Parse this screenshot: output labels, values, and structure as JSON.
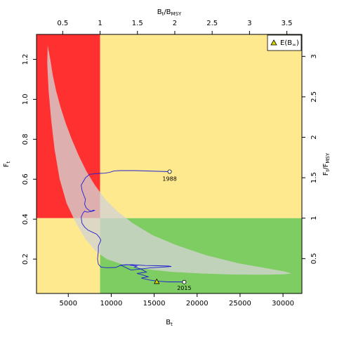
{
  "chart_data": {
    "type": "line",
    "x_axis": {
      "label": "Bt",
      "label_main": "B",
      "label_sub": "t",
      "ticks": [
        "5000",
        "10000",
        "15000",
        "20000",
        "25000",
        "30000"
      ],
      "tick_values": [
        5000,
        10000,
        15000,
        20000,
        25000,
        30000
      ],
      "range": [
        1300,
        32200
      ]
    },
    "y_axis": {
      "label": "Ft",
      "label_main": "F",
      "label_sub": "t",
      "ticks": [
        "0.2",
        "0.4",
        "0.6",
        "0.8",
        "1.0",
        "1.2"
      ],
      "tick_values": [
        0.2,
        0.4,
        0.6,
        0.8,
        1.0,
        1.2
      ],
      "range": [
        0.028,
        1.325
      ]
    },
    "top_axis": {
      "label": "Bt/BMSY",
      "label_main": "B",
      "label_sub1": "t",
      "label_mid": "/B",
      "label_sub2": "MSY",
      "ticks": [
        "0.5",
        "1",
        "1.5",
        "2",
        "2.5",
        "3",
        "3.5"
      ],
      "tick_values": [
        0.5,
        1,
        1.5,
        2,
        2.5,
        3,
        3.5
      ],
      "bmsy": 8700
    },
    "right_axis": {
      "label": "Ft/FMSY",
      "label_main": "F",
      "label_sub1": "t",
      "label_mid": "/F",
      "label_sub2": "MSY",
      "ticks": [
        "0.5",
        "1",
        "1.5",
        "2",
        "2.5",
        "3"
      ],
      "tick_values": [
        0.5,
        1,
        1.5,
        2,
        2.5,
        3
      ],
      "fmsy": 0.405
    },
    "zones": {
      "bmsy": 8700,
      "fmsy": 0.405,
      "colors": {
        "overfished_overfishing": "#ff3030",
        "caution": "#ffe98f",
        "sustainable": "#7ecd62"
      }
    },
    "uncertainty_polygon": {
      "color": "#d3d3d3",
      "points": [
        [
          2600,
          1.27
        ],
        [
          2900,
          1.2
        ],
        [
          3200,
          1.12
        ],
        [
          3600,
          1.04
        ],
        [
          4100,
          0.96
        ],
        [
          4700,
          0.88
        ],
        [
          5400,
          0.8
        ],
        [
          6200,
          0.72
        ],
        [
          7100,
          0.64
        ],
        [
          8100,
          0.57
        ],
        [
          9300,
          0.5
        ],
        [
          10700,
          0.44
        ],
        [
          12500,
          0.38
        ],
        [
          14800,
          0.32
        ],
        [
          17600,
          0.27
        ],
        [
          21000,
          0.22
        ],
        [
          24700,
          0.18
        ],
        [
          28000,
          0.155
        ],
        [
          30200,
          0.138
        ],
        [
          31000,
          0.128
        ],
        [
          30000,
          0.124
        ],
        [
          27500,
          0.122
        ],
        [
          24000,
          0.123
        ],
        [
          20500,
          0.128
        ],
        [
          17000,
          0.136
        ],
        [
          14000,
          0.15
        ],
        [
          11500,
          0.17
        ],
        [
          9500,
          0.2
        ],
        [
          8200,
          0.24
        ],
        [
          7000,
          0.3
        ],
        [
          5900,
          0.38
        ],
        [
          4800,
          0.48
        ],
        [
          4000,
          0.6
        ],
        [
          3400,
          0.75
        ],
        [
          3000,
          0.9
        ],
        [
          2700,
          1.05
        ],
        [
          2550,
          1.18
        ]
      ]
    },
    "series": [
      {
        "color": "#1f1fd0",
        "start_label": "1988",
        "end_label": "2015",
        "x": [
          16800,
          12800,
          11000,
          10300,
          9800,
          9200,
          8600,
          8100,
          7500,
          7000,
          6700,
          6500,
          6600,
          6800,
          7000,
          6900,
          7100,
          7400,
          7700,
          7900,
          8100,
          7800,
          7200,
          6900,
          6700,
          6500,
          6600,
          6900,
          7300,
          7800,
          8300,
          8600,
          8800,
          8700,
          8500,
          8500,
          8400,
          8500,
          8800,
          9500,
          10500,
          11200,
          12500,
          14000,
          15500,
          16700,
          17000,
          16000,
          14500,
          13300,
          12300,
          11100,
          11800,
          13000,
          12700,
          13500,
          14100,
          13000,
          13700,
          14300,
          13500,
          14500,
          15500,
          16600,
          17900,
          18500
        ],
        "y": [
          0.638,
          0.643,
          0.643,
          0.641,
          0.634,
          0.63,
          0.629,
          0.627,
          0.625,
          0.607,
          0.585,
          0.57,
          0.545,
          0.52,
          0.5,
          0.475,
          0.455,
          0.445,
          0.44,
          0.445,
          0.445,
          0.44,
          0.435,
          0.44,
          0.43,
          0.41,
          0.38,
          0.36,
          0.345,
          0.335,
          0.325,
          0.31,
          0.295,
          0.285,
          0.265,
          0.24,
          0.2,
          0.175,
          0.16,
          0.157,
          0.158,
          0.17,
          0.172,
          0.168,
          0.167,
          0.165,
          0.163,
          0.16,
          0.156,
          0.15,
          0.145,
          0.17,
          0.172,
          0.165,
          0.16,
          0.15,
          0.135,
          0.128,
          0.12,
          0.112,
          0.105,
          0.095,
          0.089,
          0.086,
          0.086,
          0.085
        ]
      }
    ],
    "equilibrium_marker": {
      "x": 15300,
      "y": 0.088,
      "color": "#d8d800"
    },
    "legend": {
      "label": "E(B∞)",
      "label_main": "E(B",
      "label_sub": "∞",
      "label_end": ")",
      "placement": "top-right"
    }
  }
}
